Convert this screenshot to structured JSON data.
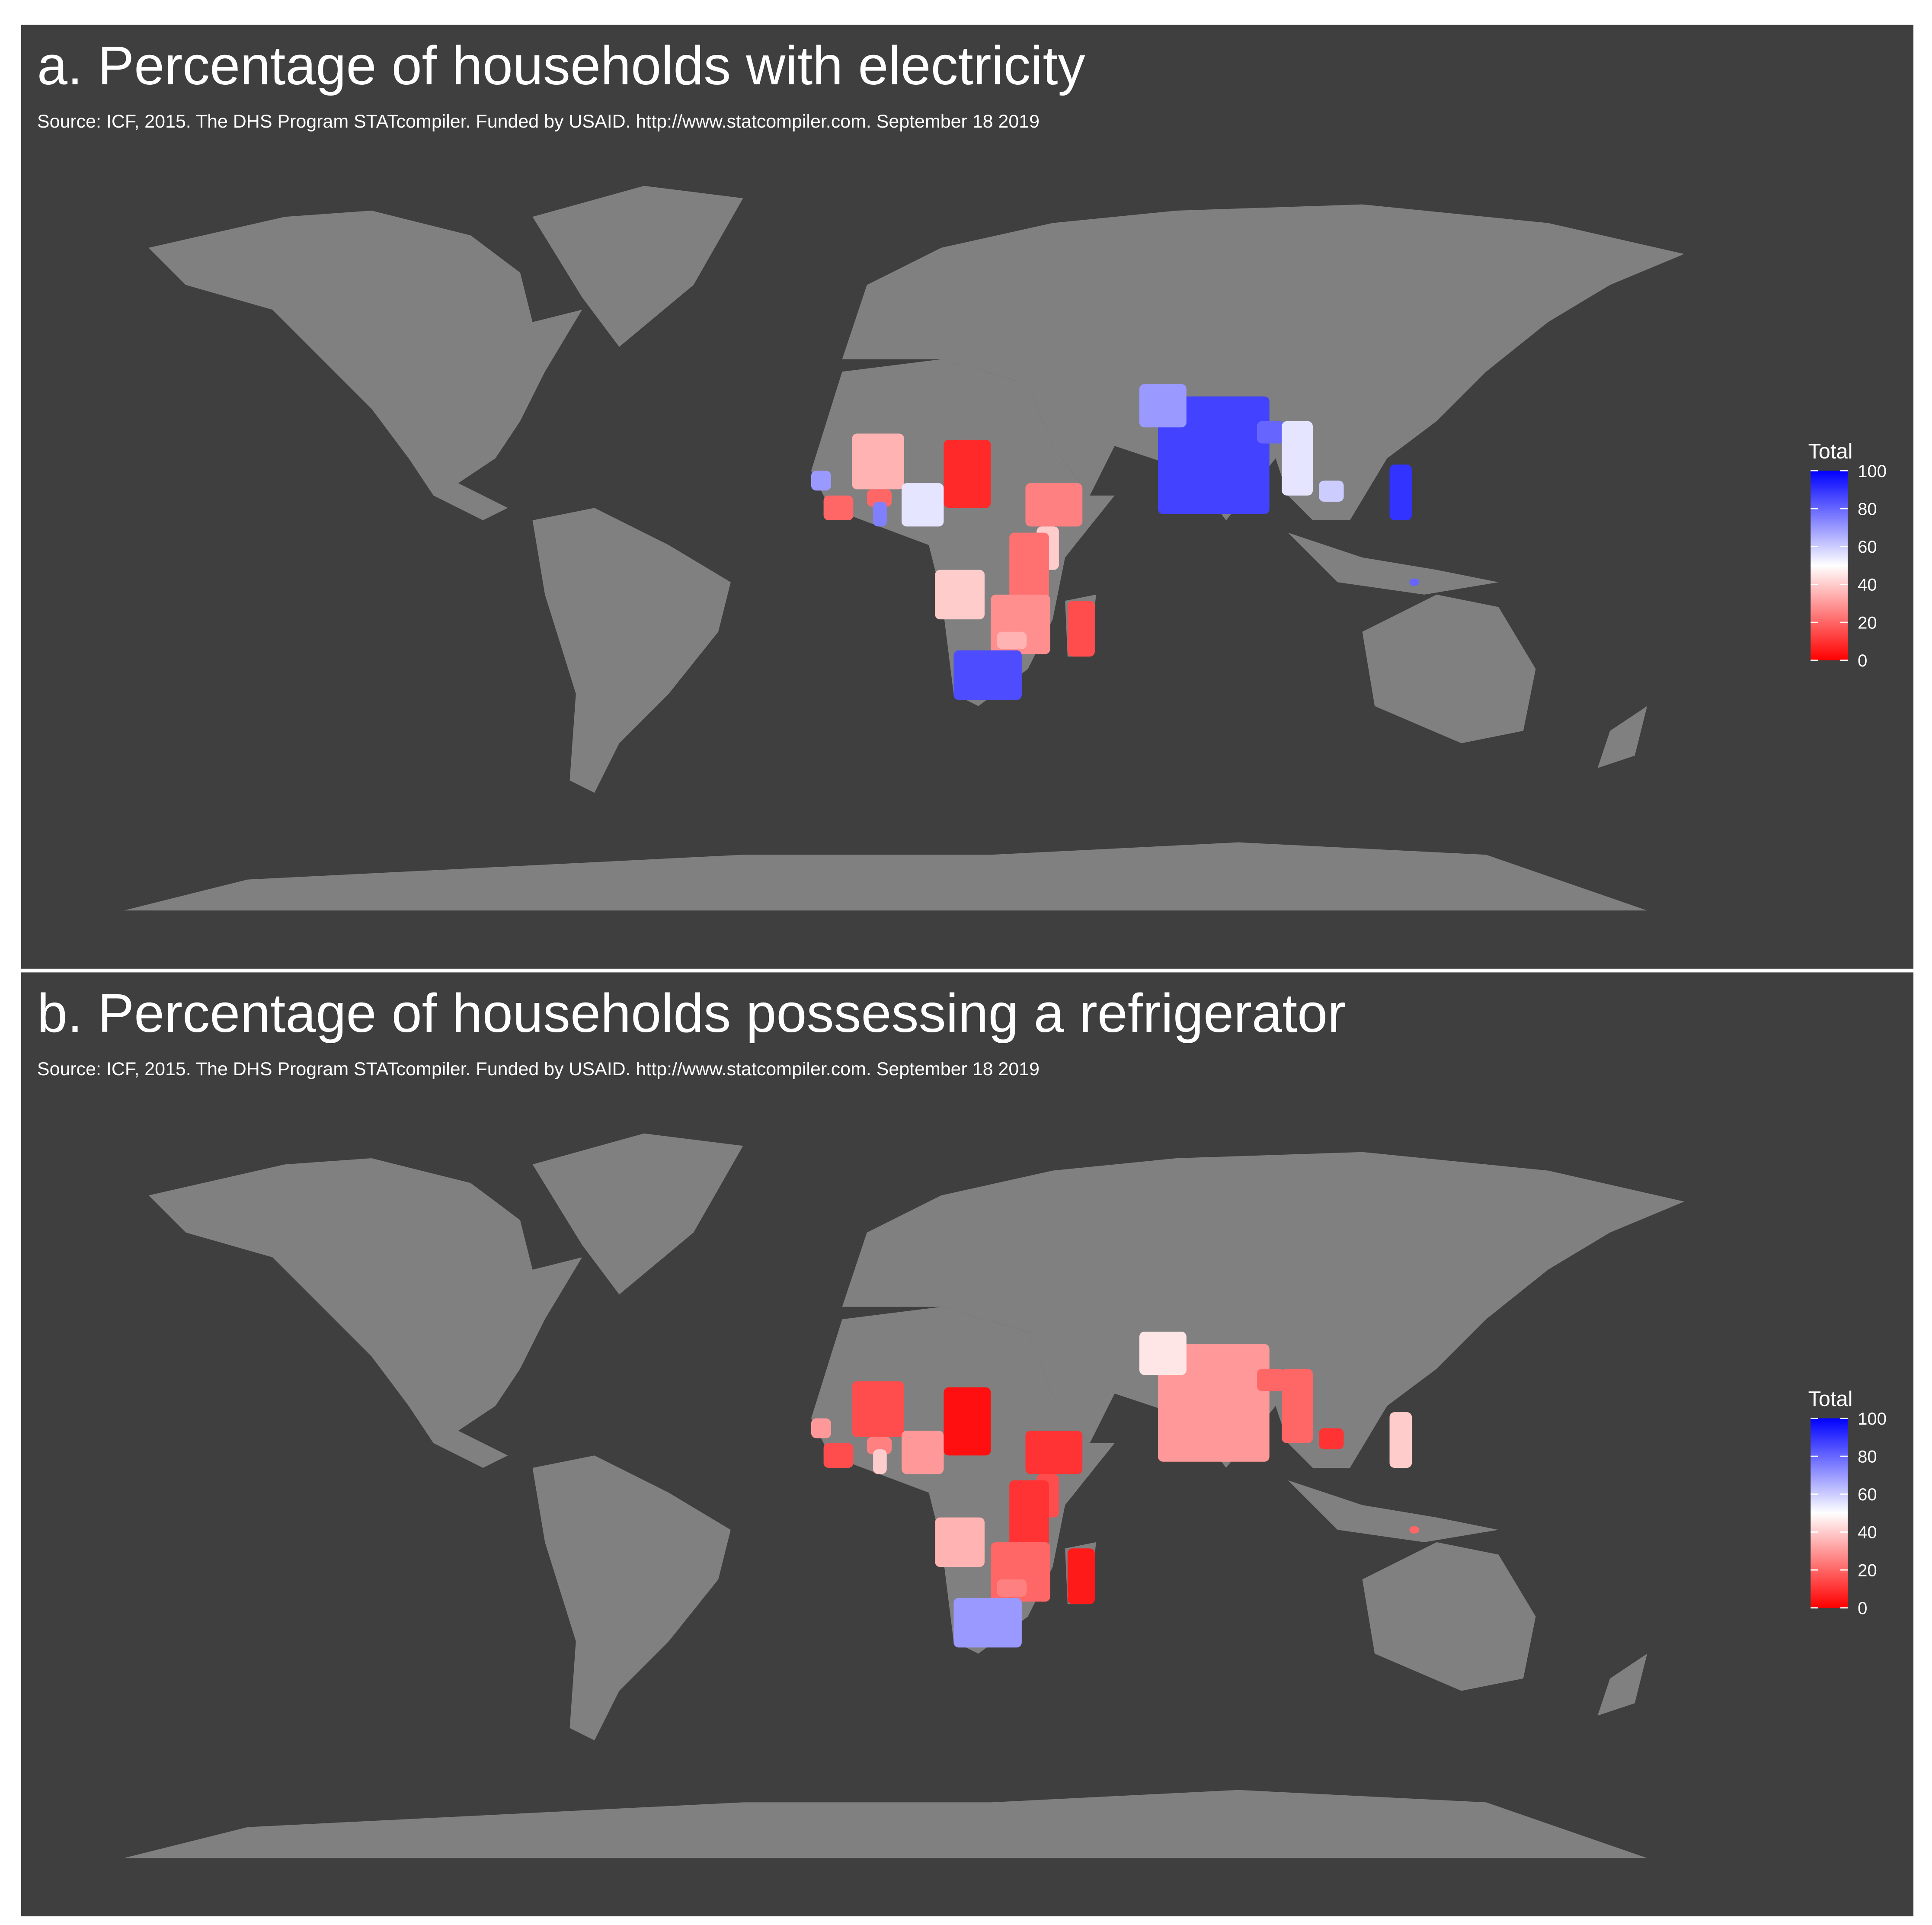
{
  "panels": [
    {
      "title": "a. Percentage of households with electricity",
      "source": "Source: ICF, 2015. The DHS Program STATcompiler. Funded by USAID. http://www.statcompiler.com. September 18 2019",
      "legend": {
        "title": "Total",
        "lim": [
          0,
          100
        ],
        "ticks": [
          0,
          20,
          40,
          60,
          80,
          100
        ],
        "colors": [
          "#ff0000",
          "#ffffff",
          "#0000ff"
        ]
      },
      "regions": [
        35,
        70,
        20,
        20,
        75,
        55,
        8,
        25,
        40,
        22,
        40,
        28,
        35,
        15,
        85,
        87,
        70,
        80,
        55,
        60,
        90,
        80
      ]
    },
    {
      "title": "b. Percentage of households possessing a refrigerator",
      "source": "Source: ICF, 2015. The DHS Program STATcompiler. Funded by USAID. http://www.statcompiler.com. September 18 2019",
      "legend": {
        "title": "Total",
        "lim": [
          0,
          100
        ],
        "ticks": [
          0,
          20,
          40,
          60,
          80,
          100
        ],
        "colors": [
          "#ff0000",
          "#ffffff",
          "#0000ff"
        ]
      },
      "regions": [
        15,
        30,
        15,
        25,
        40,
        30,
        3,
        10,
        15,
        10,
        35,
        20,
        25,
        5,
        70,
        30,
        45,
        20,
        20,
        10,
        40,
        20
      ]
    }
  ]
}
